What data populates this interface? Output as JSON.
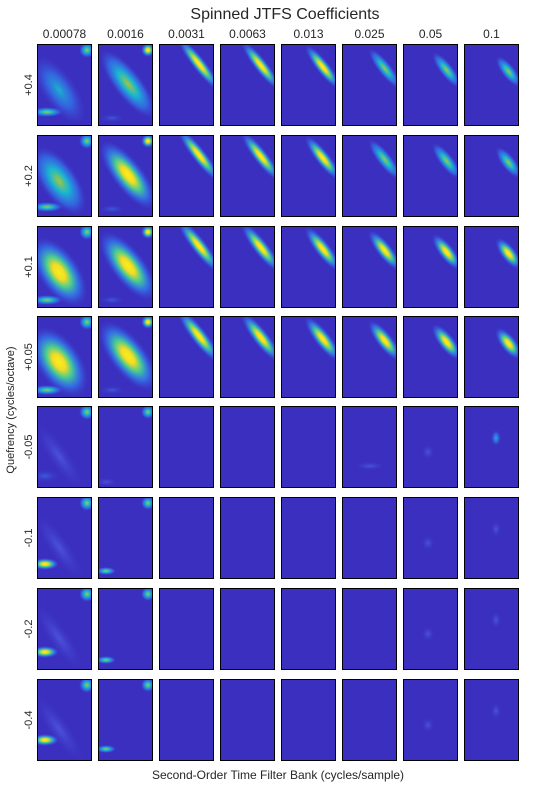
{
  "chart_data": {
    "type": "heatmap",
    "title": "Spinned JTFS Coefficients",
    "xlabel": "Second-Order Time Filter Bank (cycles/sample)",
    "ylabel": "Quefrency (cycles/octave)",
    "column_labels": [
      "0.00078",
      "0.0016",
      "0.0031",
      "0.0063",
      "0.013",
      "0.025",
      "0.05",
      "0.1"
    ],
    "row_labels": [
      "+0.4",
      "+0.2",
      "+0.1",
      "+0.05",
      "-0.05",
      "-0.1",
      "-0.2",
      "-0.4"
    ],
    "rows": 8,
    "cols": 8,
    "colormap": [
      "#3a2dbb",
      "#3f4ad6",
      "#2f86f3",
      "#18bfd0",
      "#46d293",
      "#a6c63a",
      "#f3dc22",
      "#f8ef1e"
    ],
    "background_color": "#3b2fbf",
    "panel_border_color": "#000000",
    "description_note": ""
  }
}
